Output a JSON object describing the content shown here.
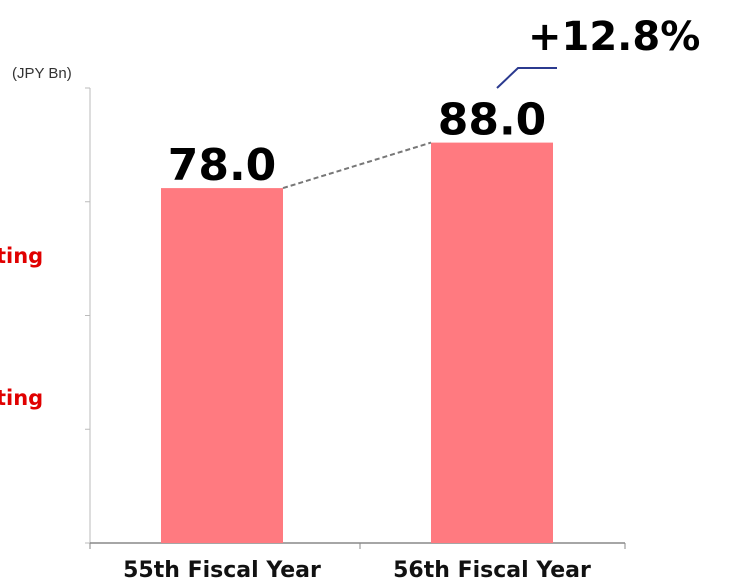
{
  "chart_data": {
    "type": "bar",
    "unit_label": "(JPY Bn)",
    "categories": [
      "55th Fiscal Year",
      "56th Fiscal Year"
    ],
    "values": [
      78,
      88
    ],
    "value_labels": [
      "78.0",
      "88.0"
    ],
    "color": "#ff7a80",
    "ylim": [
      0,
      100
    ],
    "yticks": [
      0,
      25,
      50,
      75,
      100
    ],
    "annotation": "+12.8%",
    "side_labels": [
      "ting",
      "ting"
    ]
  }
}
